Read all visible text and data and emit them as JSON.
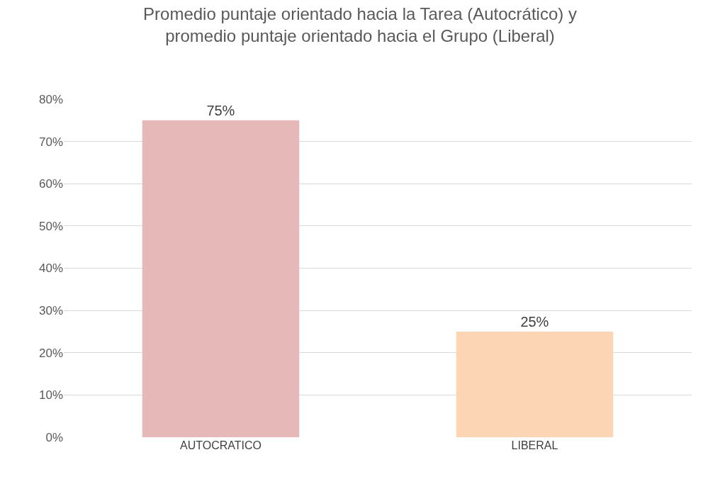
{
  "chart_data": {
    "type": "bar",
    "title": "Promedio puntaje orientado hacia la Tarea (Autocrático) y\npromedio puntaje orientado hacia el Grupo (Liberal)",
    "categories": [
      "AUTOCRATICO",
      "LIBERAL"
    ],
    "values": [
      75,
      25
    ],
    "colors": [
      "#e6b8b7",
      "#fcd5b4"
    ],
    "value_labels": [
      "75%",
      "25%"
    ],
    "ylim": [
      0,
      80
    ],
    "yticks": [
      {
        "value": 0,
        "label": "0%"
      },
      {
        "value": 10,
        "label": "10%"
      },
      {
        "value": 20,
        "label": "20%"
      },
      {
        "value": 30,
        "label": "30%"
      },
      {
        "value": 40,
        "label": "40%"
      },
      {
        "value": 50,
        "label": "50%"
      },
      {
        "value": 60,
        "label": "60%"
      },
      {
        "value": 70,
        "label": "70%"
      },
      {
        "value": 80,
        "label": "80%"
      }
    ],
    "grid": "y"
  }
}
